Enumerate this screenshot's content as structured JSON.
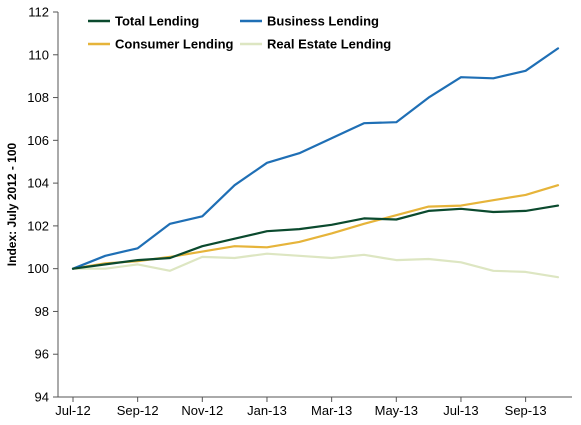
{
  "chart_data": {
    "type": "line",
    "title": "",
    "xlabel": "",
    "ylabel": "Index: July 2012 - 100",
    "ylim": [
      94,
      112
    ],
    "yticks": [
      94,
      96,
      98,
      100,
      102,
      104,
      106,
      108,
      110,
      112
    ],
    "x": [
      "Jul-12",
      "Aug-12",
      "Sep-12",
      "Oct-12",
      "Nov-12",
      "Dec-12",
      "Jan-13",
      "Feb-13",
      "Mar-13",
      "Apr-13",
      "May-13",
      "Jun-13",
      "Jul-13",
      "Aug-13",
      "Sep-13",
      "Oct-13"
    ],
    "xtick_labels": [
      "Jul-12",
      "Sep-12",
      "Nov-12",
      "Jan-13",
      "Mar-13",
      "May-13",
      "Jul-13",
      "Sep-13"
    ],
    "grid": false,
    "legend": "top-left, two columns",
    "series": [
      {
        "name": "Total Lending",
        "color": "#0b4a2e",
        "values": [
          100.0,
          100.2,
          100.4,
          100.5,
          101.05,
          101.4,
          101.75,
          101.85,
          102.05,
          102.35,
          102.3,
          102.7,
          102.8,
          102.65,
          102.7,
          102.95
        ]
      },
      {
        "name": "Business Lending",
        "color": "#1f6fb5",
        "values": [
          100.0,
          100.6,
          100.95,
          102.1,
          102.45,
          103.9,
          104.95,
          105.4,
          106.1,
          106.8,
          106.85,
          108.0,
          108.95,
          108.9,
          109.25,
          110.3
        ]
      },
      {
        "name": "Consumer Lending",
        "color": "#e6b43a",
        "values": [
          100.0,
          100.25,
          100.35,
          100.55,
          100.8,
          101.05,
          101.0,
          101.25,
          101.65,
          102.1,
          102.5,
          102.9,
          102.95,
          103.2,
          103.45,
          103.9
        ]
      },
      {
        "name": "Real Estate Lending",
        "color": "#dde6c2",
        "values": [
          100.0,
          100.0,
          100.2,
          99.9,
          100.55,
          100.5,
          100.7,
          100.6,
          100.5,
          100.65,
          100.4,
          100.45,
          100.3,
          99.9,
          99.85,
          99.6
        ]
      }
    ]
  }
}
